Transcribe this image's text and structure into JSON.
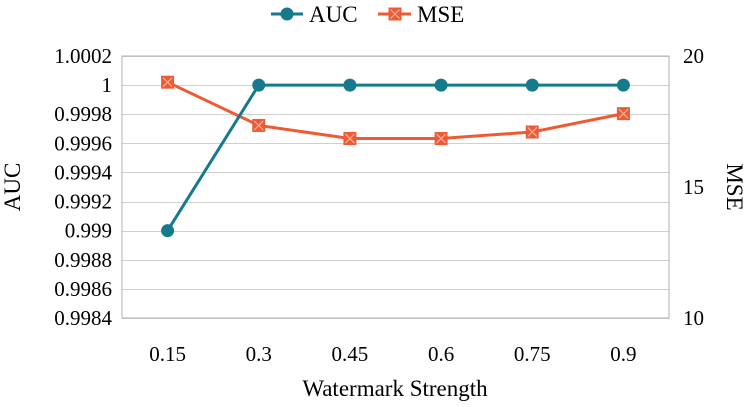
{
  "chart_data": {
    "type": "line",
    "title": "",
    "xlabel": "Watermark Strength",
    "ylabel_left": "AUC",
    "ylabel_right": "MSE",
    "categories": [
      "0.15",
      "0.3",
      "0.45",
      "0.6",
      "0.75",
      "0.9"
    ],
    "y_left": {
      "lim": [
        0.9984,
        1.0002
      ],
      "ticks": [
        1.0002,
        1,
        0.9998,
        0.9996,
        0.9994,
        0.9992,
        0.999,
        0.9988,
        0.9986,
        0.9984
      ],
      "tick_labels": [
        "1.0002",
        "1",
        "0.9998",
        "0.9996",
        "0.9994",
        "0.9992",
        "0.999",
        "0.9988",
        "0.9986",
        "0.9984"
      ]
    },
    "y_right": {
      "lim": [
        10,
        20
      ],
      "ticks": [
        20,
        15,
        10
      ],
      "tick_labels": [
        "20",
        "15",
        "10"
      ]
    },
    "grid": true,
    "legend_position": "top-center",
    "series": [
      {
        "name": "AUC",
        "axis": "left",
        "color": "#157A8C",
        "marker": "circle",
        "values": [
          0.999,
          1,
          1,
          1,
          1,
          1
        ]
      },
      {
        "name": "MSE",
        "axis": "right",
        "color": "#EE5A33",
        "marker": "square-x",
        "values": [
          19.0,
          17.35,
          16.85,
          16.85,
          17.1,
          17.8
        ]
      }
    ]
  }
}
